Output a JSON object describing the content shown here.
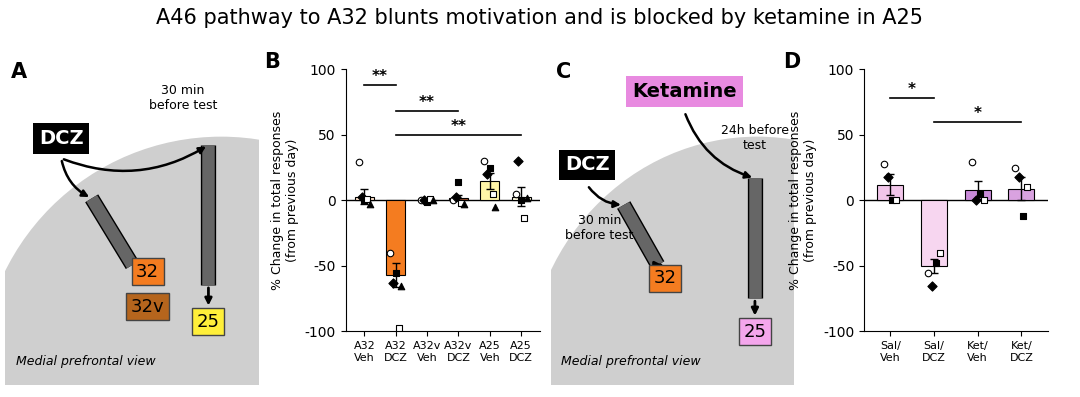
{
  "title": "A46 pathway to A32 blunts motivation and is blocked by ketamine in A25",
  "diagrams": [
    {
      "label": "A",
      "drugs": [
        {
          "name": "DCZ",
          "timing": "30 min\nbefore test",
          "color": "#000000"
        }
      ],
      "regions": [
        {
          "name": "32",
          "color": "#f47c20"
        },
        {
          "name": "32v",
          "color": "#b5651d"
        },
        {
          "name": "25",
          "color": "#ffef3a"
        }
      ],
      "view": "Medial prefrontal view"
    },
    {
      "label": "C",
      "drugs": [
        {
          "name": "Ketamine",
          "timing": "24h before\ntest",
          "color": "#e88ae0"
        },
        {
          "name": "DCZ",
          "timing": "30 min\nbefore test",
          "color": "#000000"
        }
      ],
      "regions": [
        {
          "name": "32",
          "color": "#f47c20"
        },
        {
          "name": "25",
          "color": "#f4a6ec"
        }
      ],
      "view": "Medial prefrontal view"
    }
  ],
  "chart_data": [
    {
      "label": "B",
      "type": "bar",
      "categories": [
        "A32\nVeh",
        "A32\nDCZ",
        "A32v\nVeh",
        "A32v\nDCZ",
        "A25\nVeh",
        "A25\nDCZ"
      ],
      "values": [
        3,
        -57,
        0,
        2,
        15,
        3
      ],
      "errors": [
        6,
        9,
        1,
        2,
        6,
        7
      ],
      "points": [
        [
          29,
          3,
          0,
          1,
          -3
        ],
        [
          -40,
          -63,
          -55,
          -97,
          -65
        ],
        [
          0,
          0,
          -1,
          1,
          0
        ],
        [
          0,
          3,
          14,
          -2,
          -3
        ],
        [
          30,
          20,
          25,
          5,
          -5
        ],
        [
          5,
          30,
          0,
          -13,
          2
        ]
      ],
      "colors": [
        "#fde0c8",
        "#f47c20",
        "#c98a5a",
        "#a0522d",
        "#fff5a8",
        "#fffbe0"
      ],
      "ylabel": "% Change in total responses\n(from previous day)",
      "ylim": [
        -100,
        100
      ],
      "yticks": [
        -100,
        -50,
        0,
        50,
        100
      ],
      "comparisons": [
        {
          "between": [
            0,
            1
          ],
          "y": 88,
          "label": "**"
        },
        {
          "between": [
            1,
            3
          ],
          "y": 68,
          "label": "**"
        },
        {
          "between": [
            1,
            5
          ],
          "y": 50,
          "label": "**"
        }
      ]
    },
    {
      "label": "D",
      "type": "bar",
      "categories": [
        "Sal/\nVeh",
        "Sal/\nDCZ",
        "Ket/\nVeh",
        "Ket/\nDCZ"
      ],
      "values": [
        12,
        -50,
        8,
        9
      ],
      "errors": [
        8,
        5,
        7,
        9
      ],
      "points": [
        [
          28,
          18,
          0,
          0
        ],
        [
          -55,
          -65,
          -48,
          -40
        ],
        [
          29,
          0,
          5,
          0
        ],
        [
          25,
          18,
          -12,
          10
        ]
      ],
      "colors": [
        "#f2c6ea",
        "#f7d6f0",
        "#c98ad8",
        "#d9a2e0"
      ],
      "ylabel": "% Change in total responses\n(from previous day)",
      "ylim": [
        -100,
        100
      ],
      "yticks": [
        -100,
        -50,
        0,
        50,
        100
      ],
      "comparisons": [
        {
          "between": [
            0,
            1
          ],
          "y": 78,
          "label": "*"
        },
        {
          "between": [
            1,
            3
          ],
          "y": 60,
          "label": "*"
        }
      ]
    }
  ]
}
